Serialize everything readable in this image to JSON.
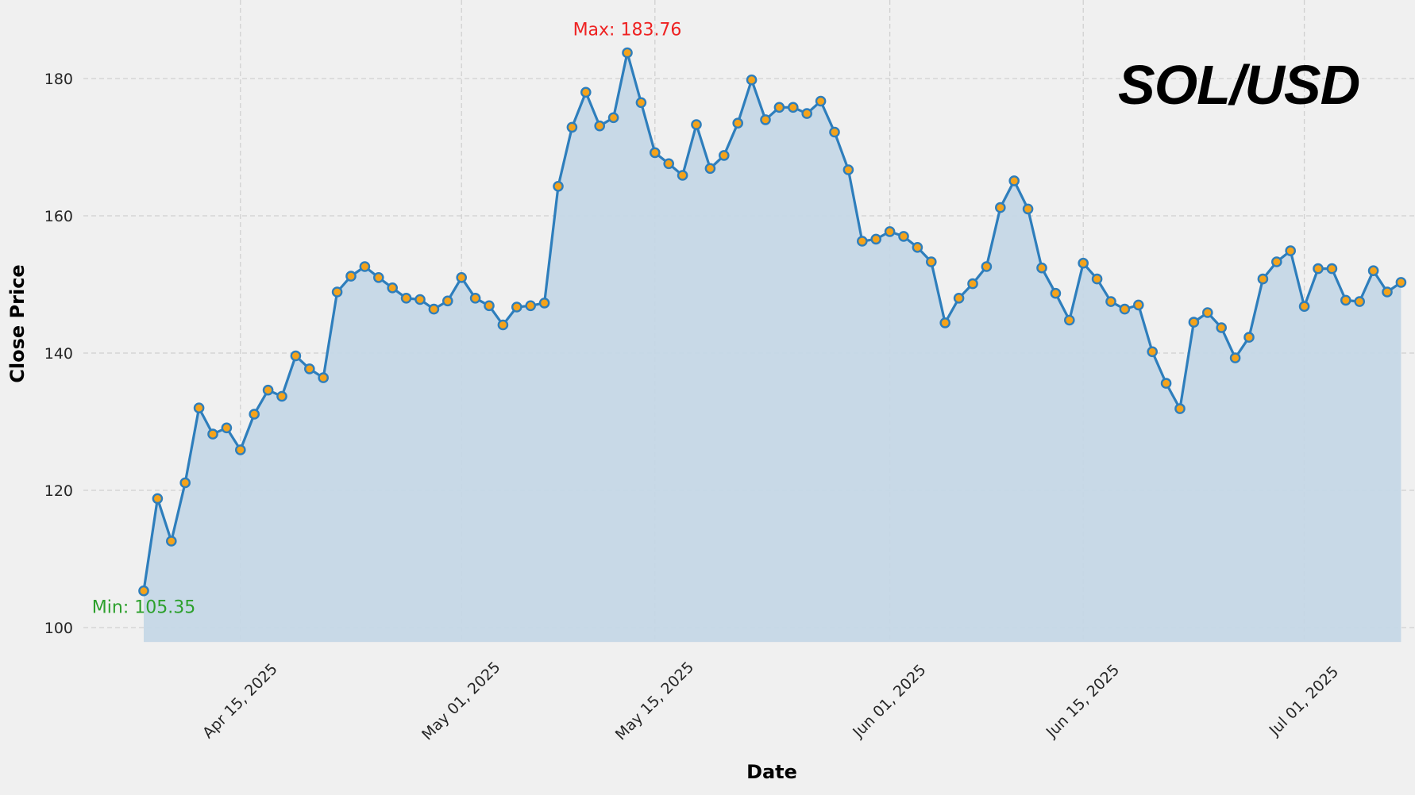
{
  "chart_data": {
    "type": "line",
    "title": "SOL/USD",
    "xlabel": "Date",
    "ylabel": "Close Price",
    "style": {
      "fill_under_line": true,
      "markers": true,
      "grid": true,
      "grid_style": "dashed"
    },
    "ylim": [
      97.9,
      191.4
    ],
    "yticks": [
      100,
      120,
      140,
      160,
      180
    ],
    "xticks": [
      {
        "label": "Apr 15, 2025",
        "day_index": 7
      },
      {
        "label": "May 01, 2025",
        "day_index": 23
      },
      {
        "label": "May 15, 2025",
        "day_index": 37
      },
      {
        "label": "Jun 01, 2025",
        "day_index": 54
      },
      {
        "label": "Jun 15, 2025",
        "day_index": 68
      },
      {
        "label": "Jul 01, 2025",
        "day_index": 84
      }
    ],
    "start_date": "2025-04-08",
    "end_date": "2025-07-08",
    "series": [
      {
        "name": "SOL/USD Close",
        "values": [
          105.35,
          118.8,
          112.6,
          121.1,
          132.0,
          128.2,
          129.1,
          125.9,
          131.1,
          134.6,
          133.7,
          139.6,
          137.7,
          136.4,
          148.9,
          151.2,
          152.6,
          151.0,
          149.5,
          148.0,
          147.8,
          146.4,
          147.6,
          151.0,
          148.0,
          146.9,
          144.1,
          146.7,
          146.9,
          147.3,
          164.3,
          172.9,
          178.0,
          173.1,
          174.3,
          183.76,
          176.5,
          169.2,
          167.6,
          165.9,
          173.3,
          166.9,
          168.8,
          173.5,
          179.8,
          174.0,
          175.8,
          175.8,
          174.9,
          176.7,
          172.2,
          166.7,
          156.3,
          156.6,
          157.7,
          157.0,
          155.4,
          153.3,
          144.4,
          148.0,
          150.1,
          152.6,
          161.2,
          165.1,
          161.0,
          152.4,
          148.7,
          144.8,
          153.1,
          150.8,
          147.5,
          146.4,
          147.0,
          140.2,
          135.6,
          131.9,
          144.5,
          145.9,
          143.7,
          139.3,
          142.3,
          150.8,
          153.3,
          154.9,
          146.8,
          152.3,
          152.3,
          147.7,
          147.5,
          152.0,
          148.9,
          150.3
        ]
      }
    ],
    "annotations": {
      "max": {
        "label": "Max: 183.76",
        "value": 183.76,
        "color": "#ee2222"
      },
      "min": {
        "label": "Min: 105.35",
        "value": 105.35,
        "color": "#2ca02c"
      }
    },
    "colors": {
      "line": "#2e7ebc",
      "marker_fill": "#f5a31a",
      "marker_edge": "#2e7ebc",
      "fill": "#c5d7e6",
      "grid": "#d0d0d0",
      "background": "#f0f0f0"
    }
  }
}
